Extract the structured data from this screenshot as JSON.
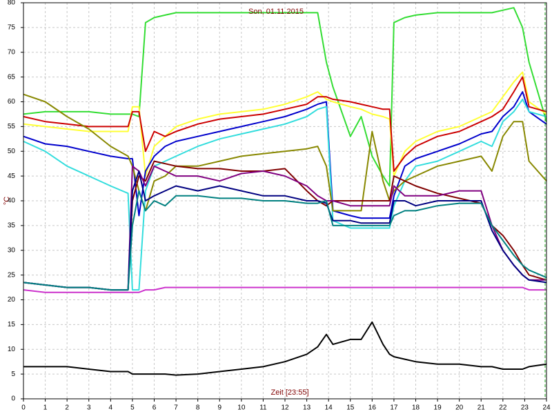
{
  "chart_data": {
    "type": "line",
    "title": "Son, 01.11.2015",
    "x_label": "Zeit [23:55]",
    "y_label": "°C",
    "x": [
      0,
      1,
      2,
      3,
      4,
      4.8,
      5,
      5.3,
      5.6,
      6,
      6.5,
      7,
      8,
      9,
      10,
      11,
      12,
      13,
      13.5,
      13.9,
      14.2,
      15,
      15.5,
      16,
      16.5,
      16.8,
      17,
      17.5,
      18,
      19,
      20,
      21,
      21.5,
      22,
      22.5,
      22.9,
      23.2,
      24
    ],
    "series": [
      {
        "color": "#33dd33",
        "values": [
          57.5,
          58,
          58,
          58,
          57.5,
          57.5,
          57.5,
          57,
          76,
          77,
          77.5,
          78,
          78,
          78,
          78,
          78,
          78,
          78,
          78,
          68,
          63,
          53,
          57,
          49,
          45,
          43,
          76,
          77,
          77.5,
          78,
          78,
          78,
          78,
          78.5,
          79,
          75,
          68,
          56
        ]
      },
      {
        "color": "#ffff33",
        "values": [
          55.5,
          55,
          54.5,
          54,
          54,
          54,
          59,
          59,
          45,
          51,
          53,
          55,
          56.5,
          57.5,
          58,
          58.5,
          59.5,
          61,
          62,
          60.5,
          60,
          59,
          58.5,
          57.5,
          57,
          56.5,
          45,
          50,
          52,
          54,
          55,
          57,
          58,
          61,
          64,
          66,
          60,
          57.5
        ]
      },
      {
        "color": "#cc0000",
        "values": [
          57,
          56,
          55.5,
          55,
          55,
          55,
          58,
          58,
          50,
          54,
          53,
          54,
          55.5,
          56.5,
          57,
          57.5,
          58.5,
          59.5,
          61,
          61,
          60.5,
          60,
          59.5,
          59,
          58.5,
          58.5,
          46,
          49,
          51,
          53,
          54,
          56,
          57,
          58.5,
          62,
          65,
          59,
          58
        ]
      },
      {
        "color": "#0000cc",
        "values": [
          53,
          51.5,
          51,
          50,
          49,
          48.5,
          48.5,
          37,
          46,
          49,
          51,
          52,
          53,
          54,
          55,
          56,
          57,
          58.5,
          59.5,
          60,
          38,
          37,
          36.5,
          36.5,
          36.5,
          36.5,
          41,
          47,
          48.5,
          50,
          51.5,
          53.5,
          54,
          57,
          59,
          62,
          58,
          55.5
        ]
      },
      {
        "color": "#33dddd",
        "values": [
          52,
          50,
          47,
          45,
          43,
          41.5,
          22,
          22,
          42,
          47,
          48,
          49,
          51,
          52.5,
          53.5,
          54.5,
          55.5,
          57,
          58.5,
          59,
          36,
          34.5,
          34.5,
          34.5,
          34.5,
          34.5,
          39,
          44,
          47,
          48,
          50,
          52,
          51,
          56,
          58,
          60.5,
          58,
          57
        ]
      },
      {
        "color": "#888800",
        "values": [
          61.5,
          60,
          57,
          54.5,
          51,
          49,
          47,
          42,
          38,
          44,
          45,
          47,
          47,
          48,
          49,
          49.5,
          50,
          50.5,
          51,
          47,
          38,
          38,
          38,
          54,
          44,
          40,
          42,
          44,
          45,
          47,
          48,
          49,
          46,
          53,
          56,
          56,
          48,
          44
        ]
      },
      {
        "color": "#800000",
        "values": [
          23.5,
          23,
          22.5,
          22.5,
          22,
          22,
          40,
          45,
          44,
          48,
          47.5,
          47,
          46.5,
          46.5,
          46,
          46,
          46.5,
          42,
          40,
          39,
          40,
          40,
          40,
          40,
          40,
          40,
          45,
          44,
          43,
          41.5,
          40.5,
          39.5,
          35,
          33,
          30,
          27,
          25,
          24
        ]
      },
      {
        "color": "#800080",
        "values": [
          23.5,
          23,
          22.5,
          22.5,
          22,
          22,
          47,
          46,
          43,
          47,
          46,
          45,
          45,
          44,
          45.5,
          46,
          45,
          43,
          41,
          40,
          40,
          39,
          39,
          39,
          39,
          39,
          43,
          41,
          41,
          41,
          42,
          42,
          35,
          30,
          27,
          25,
          24,
          24
        ]
      },
      {
        "color": "#000080",
        "values": [
          23.5,
          23,
          22.5,
          22.5,
          22,
          22,
          42,
          46,
          40,
          41,
          42,
          43,
          42,
          43,
          42,
          41,
          41,
          40,
          40,
          39.5,
          36,
          36,
          35.5,
          35.5,
          35.5,
          35.5,
          40,
          40,
          39,
          40,
          40,
          40,
          34,
          30,
          27,
          25,
          24,
          23.5
        ]
      },
      {
        "color": "#008080",
        "values": [
          23.5,
          23,
          22.5,
          22.5,
          22,
          22,
          35,
          42,
          38,
          40,
          39,
          41,
          41,
          40.5,
          40.5,
          40,
          40,
          39.5,
          39.5,
          40,
          35,
          35,
          35,
          35,
          35,
          35,
          37,
          38,
          38,
          39,
          39.5,
          39.5,
          35,
          32,
          29,
          27,
          26,
          24.5
        ]
      },
      {
        "color": "#cc33cc",
        "values": [
          22,
          21.5,
          21.5,
          21.5,
          21.5,
          21.5,
          21.5,
          21.5,
          22,
          22,
          22.5,
          22.5,
          22.5,
          22.5,
          22.5,
          22.5,
          22.5,
          22.5,
          22.5,
          22.5,
          22.5,
          22.5,
          22.5,
          22.5,
          22.5,
          22.5,
          22.5,
          22.5,
          22.5,
          22.5,
          22.5,
          22.5,
          22.5,
          22.5,
          22.5,
          22.5,
          22,
          22
        ]
      },
      {
        "color": "#000000",
        "values": [
          6.5,
          6.5,
          6.5,
          6,
          5.5,
          5.5,
          5,
          5,
          5,
          5,
          5,
          4.8,
          5,
          5.5,
          6,
          6.5,
          7.5,
          9,
          10.5,
          13,
          11,
          12,
          12,
          15.5,
          11,
          9,
          8.5,
          8,
          7.5,
          7,
          7,
          6.5,
          6.5,
          6,
          6,
          6,
          6.5,
          7
        ]
      }
    ],
    "xlim": [
      0,
      24
    ],
    "xticks": [
      0,
      1,
      2,
      3,
      4,
      5,
      6,
      7,
      8,
      9,
      10,
      11,
      12,
      13,
      14,
      15,
      16,
      17,
      18,
      19,
      20,
      21,
      22,
      23,
      24
    ],
    "ylim": [
      0,
      80
    ],
    "yticks": [
      0,
      5,
      10,
      15,
      20,
      25,
      30,
      35,
      40,
      45,
      50,
      55,
      60,
      65,
      70,
      75,
      80
    ],
    "grid": true
  }
}
